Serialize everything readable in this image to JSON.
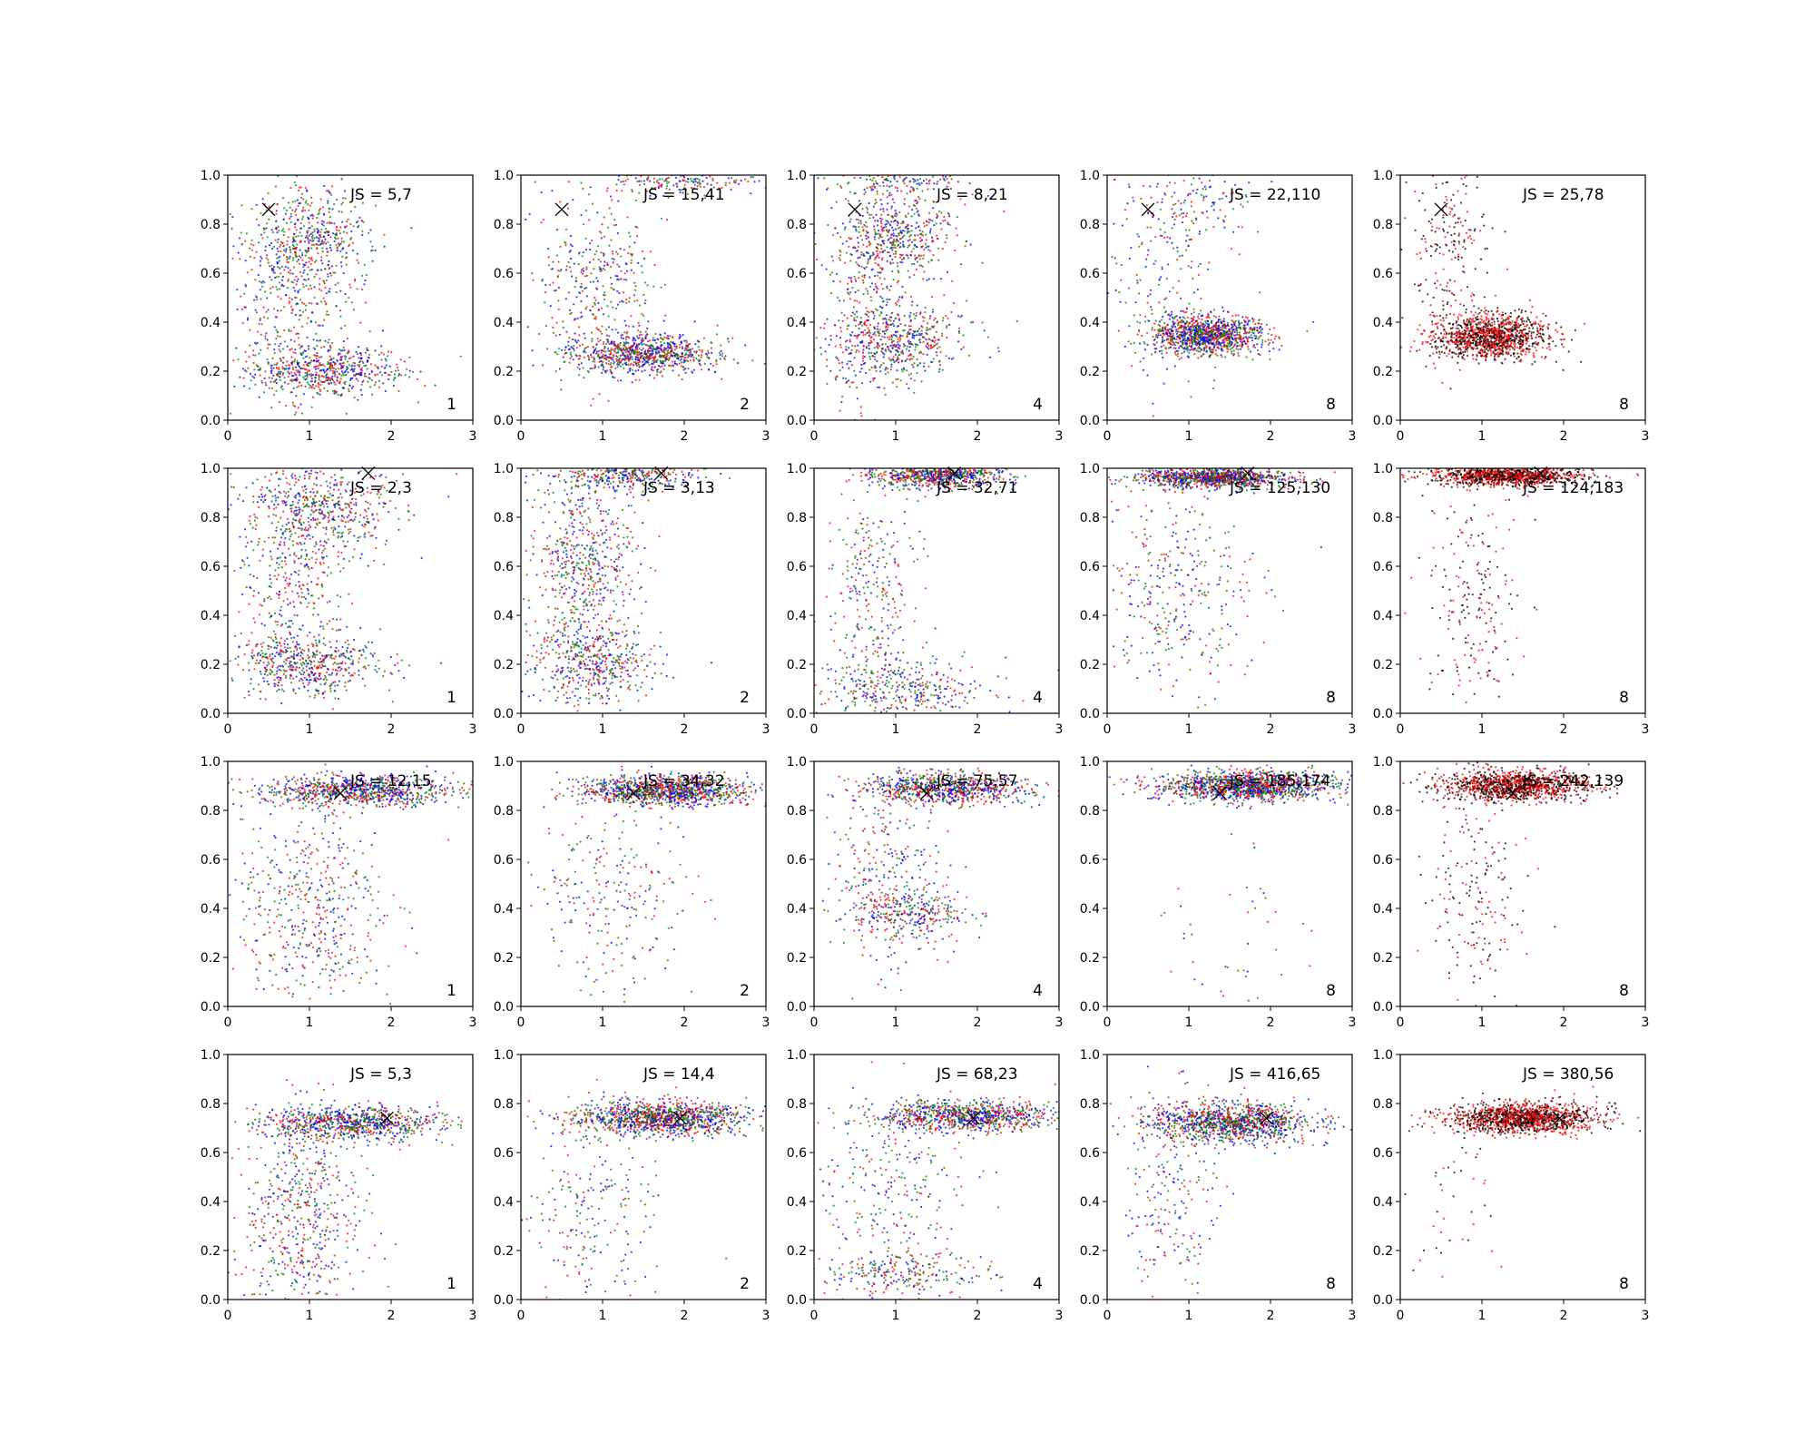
{
  "chart_data": {
    "type": "scatter",
    "layout": {
      "rows": 4,
      "cols": 5
    },
    "xlim": [
      0,
      3
    ],
    "ylim": [
      0,
      1
    ],
    "xticks": [
      "0",
      "1",
      "2",
      "3"
    ],
    "yticks": [
      "0.0",
      "0.2",
      "0.4",
      "0.6",
      "0.8",
      "1.0"
    ],
    "marker": "x",
    "colors": {
      "red": "#ff0000",
      "green": "#008000",
      "blue": "#0000ff",
      "black": "#000000"
    },
    "marker_points": [
      {
        "x": 0.5,
        "y": 0.86
      },
      {
        "x": 1.72,
        "y": 0.98
      },
      {
        "x": 1.38,
        "y": 0.87
      },
      {
        "x": 1.95,
        "y": 0.74
      }
    ],
    "panels": [
      {
        "row": 0,
        "col": 0,
        "js": "JS = 5,7",
        "n": "1",
        "colors": [
          "red",
          "green",
          "blue"
        ],
        "clusters": [
          {
            "x": 1.2,
            "y": 0.2,
            "sx": 0.5,
            "sy": 0.05,
            "w": 0.4
          },
          {
            "x": 1.0,
            "y": 0.75,
            "sx": 0.35,
            "sy": 0.1,
            "w": 0.35
          },
          {
            "x": 0.8,
            "y": 0.45,
            "sx": 0.4,
            "sy": 0.2,
            "w": 0.25
          }
        ]
      },
      {
        "row": 0,
        "col": 1,
        "js": "JS = 15,41",
        "n": "2",
        "colors": [
          "red",
          "green",
          "blue"
        ],
        "clusters": [
          {
            "x": 1.5,
            "y": 0.27,
            "sx": 0.45,
            "sy": 0.04,
            "w": 0.55
          },
          {
            "x": 2.0,
            "y": 0.98,
            "sx": 0.45,
            "sy": 0.03,
            "w": 0.15
          },
          {
            "x": 0.9,
            "y": 0.55,
            "sx": 0.35,
            "sy": 0.2,
            "w": 0.3
          }
        ]
      },
      {
        "row": 0,
        "col": 2,
        "js": "JS = 8,21",
        "n": "4",
        "colors": [
          "red",
          "green",
          "blue"
        ],
        "clusters": [
          {
            "x": 1.0,
            "y": 0.32,
            "sx": 0.45,
            "sy": 0.07,
            "w": 0.35
          },
          {
            "x": 1.0,
            "y": 0.75,
            "sx": 0.35,
            "sy": 0.08,
            "w": 0.3
          },
          {
            "x": 1.0,
            "y": 0.98,
            "sx": 0.4,
            "sy": 0.03,
            "w": 0.1
          },
          {
            "x": 0.7,
            "y": 0.5,
            "sx": 0.3,
            "sy": 0.25,
            "w": 0.25
          }
        ]
      },
      {
        "row": 0,
        "col": 3,
        "js": "JS = 22,110",
        "n": "8",
        "colors": [
          "blue",
          "green",
          "red"
        ],
        "clusters": [
          {
            "x": 1.2,
            "y": 0.35,
            "sx": 0.35,
            "sy": 0.04,
            "w": 0.8
          },
          {
            "x": 1.0,
            "y": 0.88,
            "sx": 0.4,
            "sy": 0.07,
            "w": 0.08
          },
          {
            "x": 0.7,
            "y": 0.55,
            "sx": 0.35,
            "sy": 0.25,
            "w": 0.12
          }
        ]
      },
      {
        "row": 0,
        "col": 4,
        "js": "JS = 25,78",
        "n": "8",
        "colors": [
          "black",
          "red"
        ],
        "clusters": [
          {
            "x": 1.1,
            "y": 0.34,
            "sx": 0.35,
            "sy": 0.045,
            "w": 0.85
          },
          {
            "x": 0.6,
            "y": 0.7,
            "sx": 0.25,
            "sy": 0.2,
            "w": 0.15
          }
        ]
      },
      {
        "row": 1,
        "col": 0,
        "js": "JS = 2,3",
        "n": "1",
        "colors": [
          "red",
          "green",
          "blue"
        ],
        "clusters": [
          {
            "x": 1.0,
            "y": 0.2,
            "sx": 0.45,
            "sy": 0.06,
            "w": 0.35
          },
          {
            "x": 1.1,
            "y": 0.85,
            "sx": 0.45,
            "sy": 0.1,
            "w": 0.4
          },
          {
            "x": 0.8,
            "y": 0.5,
            "sx": 0.35,
            "sy": 0.2,
            "w": 0.25
          }
        ]
      },
      {
        "row": 1,
        "col": 1,
        "js": "JS = 3,13",
        "n": "2",
        "colors": [
          "red",
          "green",
          "blue"
        ],
        "clusters": [
          {
            "x": 0.9,
            "y": 0.2,
            "sx": 0.4,
            "sy": 0.08,
            "w": 0.3
          },
          {
            "x": 1.3,
            "y": 0.97,
            "sx": 0.45,
            "sy": 0.03,
            "w": 0.25
          },
          {
            "x": 0.8,
            "y": 0.6,
            "sx": 0.3,
            "sy": 0.2,
            "w": 0.45
          }
        ]
      },
      {
        "row": 1,
        "col": 2,
        "js": "JS = 32,71",
        "n": "4",
        "colors": [
          "blue",
          "green",
          "red"
        ],
        "clusters": [
          {
            "x": 1.5,
            "y": 0.97,
            "sx": 0.4,
            "sy": 0.025,
            "w": 0.55
          },
          {
            "x": 1.1,
            "y": 0.1,
            "sx": 0.5,
            "sy": 0.06,
            "w": 0.25
          },
          {
            "x": 0.7,
            "y": 0.5,
            "sx": 0.3,
            "sy": 0.22,
            "w": 0.2
          }
        ]
      },
      {
        "row": 1,
        "col": 3,
        "js": "JS = 125,130",
        "n": "8",
        "colors": [
          "blue",
          "red",
          "green"
        ],
        "clusters": [
          {
            "x": 1.3,
            "y": 0.96,
            "sx": 0.45,
            "sy": 0.02,
            "w": 0.75
          },
          {
            "x": 0.9,
            "y": 0.5,
            "sx": 0.45,
            "sy": 0.22,
            "w": 0.25
          }
        ]
      },
      {
        "row": 1,
        "col": 4,
        "js": "JS = 124,183",
        "n": "8",
        "colors": [
          "black",
          "red"
        ],
        "clusters": [
          {
            "x": 1.3,
            "y": 0.97,
            "sx": 0.45,
            "sy": 0.02,
            "w": 0.85
          },
          {
            "x": 0.9,
            "y": 0.45,
            "sx": 0.3,
            "sy": 0.25,
            "w": 0.15
          }
        ]
      },
      {
        "row": 2,
        "col": 0,
        "js": "JS = 12,15",
        "n": "1",
        "colors": [
          "red",
          "green",
          "blue"
        ],
        "clusters": [
          {
            "x": 1.6,
            "y": 0.88,
            "sx": 0.6,
            "sy": 0.03,
            "w": 0.6
          },
          {
            "x": 1.0,
            "y": 0.4,
            "sx": 0.45,
            "sy": 0.22,
            "w": 0.4
          }
        ]
      },
      {
        "row": 2,
        "col": 1,
        "js": "JS = 34,32",
        "n": "2",
        "colors": [
          "blue",
          "green",
          "red"
        ],
        "clusters": [
          {
            "x": 1.8,
            "y": 0.88,
            "sx": 0.5,
            "sy": 0.03,
            "w": 0.8
          },
          {
            "x": 1.1,
            "y": 0.45,
            "sx": 0.45,
            "sy": 0.22,
            "w": 0.2
          }
        ]
      },
      {
        "row": 2,
        "col": 2,
        "js": "JS = 75,57",
        "n": "4",
        "colors": [
          "blue",
          "red",
          "green"
        ],
        "clusters": [
          {
            "x": 1.6,
            "y": 0.89,
            "sx": 0.5,
            "sy": 0.03,
            "w": 0.6
          },
          {
            "x": 1.2,
            "y": 0.38,
            "sx": 0.35,
            "sy": 0.05,
            "w": 0.2
          },
          {
            "x": 0.9,
            "y": 0.5,
            "sx": 0.35,
            "sy": 0.2,
            "w": 0.2
          }
        ]
      },
      {
        "row": 2,
        "col": 3,
        "js": "JS = 185,174",
        "n": "8",
        "colors": [
          "blue",
          "green",
          "red"
        ],
        "clusters": [
          {
            "x": 1.7,
            "y": 0.9,
            "sx": 0.55,
            "sy": 0.03,
            "w": 0.97
          },
          {
            "x": 1.5,
            "y": 0.3,
            "sx": 0.5,
            "sy": 0.2,
            "w": 0.03
          }
        ]
      },
      {
        "row": 2,
        "col": 4,
        "js": "JS = 242,139",
        "n": "8",
        "colors": [
          "black",
          "red"
        ],
        "clusters": [
          {
            "x": 1.4,
            "y": 0.9,
            "sx": 0.45,
            "sy": 0.03,
            "w": 0.85
          },
          {
            "x": 0.9,
            "y": 0.45,
            "sx": 0.3,
            "sy": 0.22,
            "w": 0.15
          }
        ]
      },
      {
        "row": 3,
        "col": 0,
        "js": "JS = 5,3",
        "n": "1",
        "colors": [
          "red",
          "green",
          "blue"
        ],
        "clusters": [
          {
            "x": 1.5,
            "y": 0.72,
            "sx": 0.55,
            "sy": 0.035,
            "w": 0.55
          },
          {
            "x": 0.9,
            "y": 0.35,
            "sx": 0.35,
            "sy": 0.22,
            "w": 0.45
          }
        ]
      },
      {
        "row": 3,
        "col": 1,
        "js": "JS = 14,4",
        "n": "2",
        "colors": [
          "blue",
          "green",
          "red"
        ],
        "clusters": [
          {
            "x": 1.7,
            "y": 0.74,
            "sx": 0.55,
            "sy": 0.035,
            "w": 0.85
          },
          {
            "x": 0.8,
            "y": 0.35,
            "sx": 0.4,
            "sy": 0.2,
            "w": 0.15
          }
        ]
      },
      {
        "row": 3,
        "col": 2,
        "js": "JS = 68,23",
        "n": "4",
        "colors": [
          "blue",
          "red",
          "green"
        ],
        "clusters": [
          {
            "x": 1.9,
            "y": 0.75,
            "sx": 0.55,
            "sy": 0.03,
            "w": 0.65
          },
          {
            "x": 1.0,
            "y": 0.1,
            "sx": 0.5,
            "sy": 0.04,
            "w": 0.15
          },
          {
            "x": 1.0,
            "y": 0.45,
            "sx": 0.45,
            "sy": 0.2,
            "w": 0.2
          }
        ]
      },
      {
        "row": 3,
        "col": 3,
        "js": "JS = 416,65",
        "n": "8",
        "colors": [
          "blue",
          "green",
          "red"
        ],
        "clusters": [
          {
            "x": 1.5,
            "y": 0.72,
            "sx": 0.5,
            "sy": 0.04,
            "w": 0.85
          },
          {
            "x": 0.8,
            "y": 0.45,
            "sx": 0.3,
            "sy": 0.25,
            "w": 0.15
          }
        ]
      },
      {
        "row": 3,
        "col": 4,
        "js": "JS = 380,56",
        "n": "8",
        "colors": [
          "black",
          "red"
        ],
        "clusters": [
          {
            "x": 1.5,
            "y": 0.74,
            "sx": 0.45,
            "sy": 0.03,
            "w": 0.97
          },
          {
            "x": 0.7,
            "y": 0.4,
            "sx": 0.3,
            "sy": 0.2,
            "w": 0.03
          }
        ]
      }
    ]
  }
}
